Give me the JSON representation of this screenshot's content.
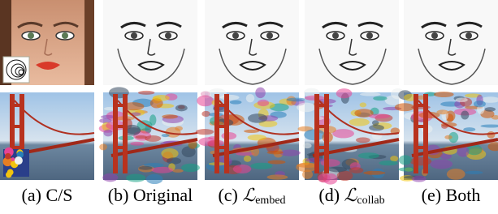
{
  "captions": [
    {
      "label": "(a)",
      "text": "C/S"
    },
    {
      "label": "(b)",
      "text": "Original"
    },
    {
      "label": "(c)",
      "symbol": "ℒ",
      "subscript": "embed"
    },
    {
      "label": "(d)",
      "symbol": "ℒ",
      "subscript": "collab"
    },
    {
      "label": "(e)",
      "text": "Both"
    }
  ]
}
